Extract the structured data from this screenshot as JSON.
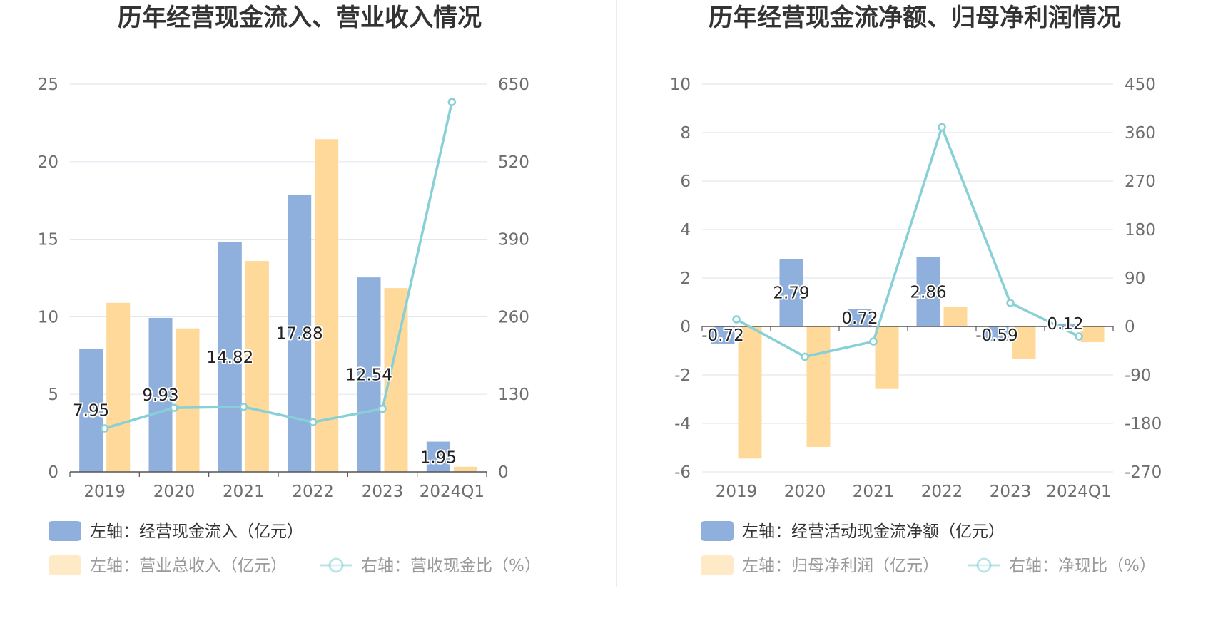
{
  "colors": {
    "bar_primary": "#8fb0dc",
    "bar_secondary": "#fed999",
    "line": "#86d0d6",
    "grid": "#e3e7f0",
    "axis": "#555555"
  },
  "chart_data": [
    {
      "type": "bar",
      "title": "历年经营现金流入、营业收入情况",
      "categories": [
        "2019",
        "2020",
        "2021",
        "2022",
        "2023",
        "2024Q1"
      ],
      "series": [
        {
          "name": "左轴：经营现金流入（亿元）",
          "axis": "left",
          "kind": "bar",
          "values": [
            7.95,
            9.93,
            14.82,
            17.88,
            12.54,
            1.95
          ],
          "labels": [
            "7.95",
            "9.93",
            "14.82",
            "17.88",
            "12.54",
            "1.95"
          ]
        },
        {
          "name": "左轴：营业总收入（亿元）",
          "axis": "left",
          "kind": "bar",
          "values": [
            10.9,
            9.25,
            13.6,
            21.45,
            11.85,
            0.33
          ]
        },
        {
          "name": "右轴：营收现金比（%）",
          "axis": "right",
          "kind": "line",
          "values": [
            72.9,
            107.4,
            109.0,
            83.4,
            105.8,
            620.0
          ]
        }
      ],
      "left_axis": {
        "min": 0,
        "max": 25,
        "ticks": [
          "0",
          "5",
          "10",
          "15",
          "20",
          "25"
        ]
      },
      "right_axis": {
        "min": 0,
        "max": 650,
        "ticks": [
          "0",
          "130",
          "260",
          "390",
          "520",
          "650"
        ]
      },
      "legend": [
        {
          "label": "左轴：经营现金流入（亿元）",
          "kind": "bar",
          "series": 0,
          "dim": false
        },
        {
          "label": "左轴：营业总收入（亿元）",
          "kind": "bar",
          "series": 1,
          "dim": true
        },
        {
          "label": "右轴：营收现金比（%）",
          "kind": "line",
          "series": 2,
          "dim": true
        }
      ]
    },
    {
      "type": "bar",
      "title": "历年经营现金流净额、归母净利润情况",
      "categories": [
        "2019",
        "2020",
        "2021",
        "2022",
        "2023",
        "2024Q1"
      ],
      "series": [
        {
          "name": "左轴：经营活动现金流净额（亿元）",
          "axis": "left",
          "kind": "bar",
          "values": [
            -0.72,
            2.79,
            0.72,
            2.86,
            -0.59,
            0.12
          ],
          "labels": [
            "-0.72",
            "2.79",
            "0.72",
            "2.86",
            "-0.59",
            "0.12"
          ]
        },
        {
          "name": "左轴：归母净利润（亿元）",
          "axis": "left",
          "kind": "bar",
          "values": [
            -5.45,
            -4.97,
            -2.58,
            0.8,
            -1.35,
            -0.65
          ]
        },
        {
          "name": "右轴：净现比（%）",
          "axis": "right",
          "kind": "line",
          "values": [
            13.2,
            -56.1,
            -27.9,
            370.0,
            43.7,
            -18.5
          ]
        }
      ],
      "left_axis": {
        "min": -6,
        "max": 10,
        "ticks": [
          "-6",
          "-4",
          "-2",
          "0",
          "2",
          "4",
          "6",
          "8",
          "10"
        ]
      },
      "right_axis": {
        "min": -270,
        "max": 450,
        "ticks": [
          "-270",
          "-180",
          "-90",
          "0",
          "90",
          "180",
          "270",
          "360",
          "450"
        ]
      },
      "legend": [
        {
          "label": "左轴：经营活动现金流净额（亿元）",
          "kind": "bar",
          "series": 0,
          "dim": false
        },
        {
          "label": "左轴：归母净利润（亿元）",
          "kind": "bar",
          "series": 1,
          "dim": true
        },
        {
          "label": "右轴：净现比（%）",
          "kind": "line",
          "series": 2,
          "dim": true
        }
      ]
    }
  ]
}
